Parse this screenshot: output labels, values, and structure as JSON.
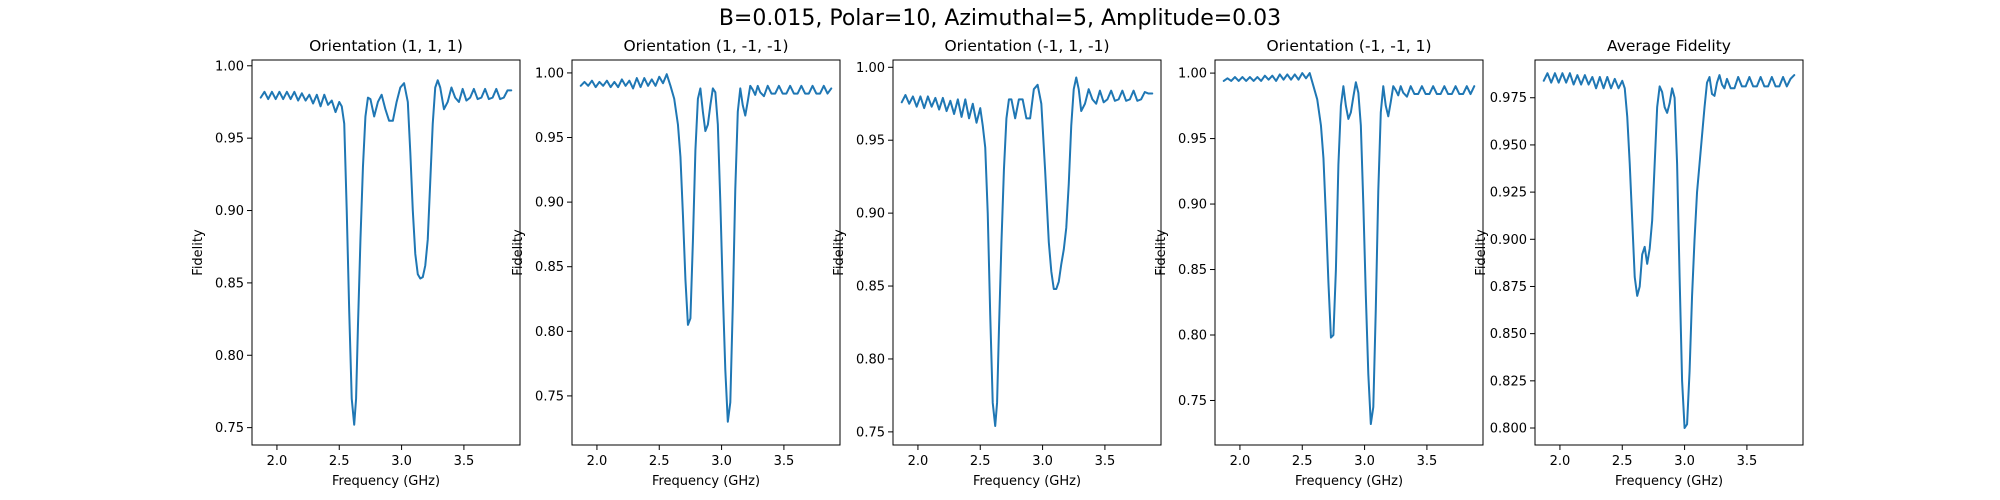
{
  "figure": {
    "suptitle": "B=0.015, Polar=10, Azimuthal=5, Amplitude=0.03"
  },
  "colors": {
    "line": "#1f77b4",
    "axes": "#000000",
    "background": "#ffffff"
  },
  "chart_data": [
    {
      "type": "line",
      "title": "Orientation (1, 1, 1)",
      "xlabel": "Frequency (GHz)",
      "ylabel": "Fidelity",
      "xlim": [
        1.8,
        3.95
      ],
      "ylim": [
        0.738,
        1.004
      ],
      "xticks": [
        2.0,
        2.5,
        3.0,
        3.5
      ],
      "xtick_labels": [
        "2.0",
        "2.5",
        "3.0",
        "3.5"
      ],
      "yticks": [
        0.75,
        0.8,
        0.85,
        0.9,
        0.95,
        1.0
      ],
      "ytick_labels": [
        "0.75",
        "0.80",
        "0.85",
        "0.90",
        "0.95",
        "1.00"
      ],
      "grid": false,
      "series": [
        {
          "x": [
            1.87,
            1.9,
            1.93,
            1.96,
            1.99,
            2.02,
            2.05,
            2.08,
            2.11,
            2.14,
            2.17,
            2.2,
            2.23,
            2.26,
            2.29,
            2.32,
            2.35,
            2.38,
            2.41,
            2.44,
            2.47,
            2.5,
            2.52,
            2.54,
            2.56,
            2.58,
            2.6,
            2.62,
            2.635,
            2.65,
            2.67,
            2.69,
            2.71,
            2.73,
            2.75,
            2.78,
            2.81,
            2.84,
            2.87,
            2.9,
            2.93,
            2.96,
            2.99,
            3.02,
            3.05,
            3.07,
            3.09,
            3.11,
            3.13,
            3.15,
            3.17,
            3.19,
            3.21,
            3.23,
            3.25,
            3.27,
            3.29,
            3.31,
            3.34,
            3.37,
            3.4,
            3.43,
            3.46,
            3.49,
            3.52,
            3.55,
            3.58,
            3.61,
            3.64,
            3.67,
            3.7,
            3.73,
            3.76,
            3.79,
            3.82,
            3.85,
            3.88
          ],
          "y": [
            0.978,
            0.982,
            0.977,
            0.982,
            0.977,
            0.982,
            0.977,
            0.982,
            0.977,
            0.982,
            0.976,
            0.981,
            0.976,
            0.98,
            0.974,
            0.98,
            0.972,
            0.98,
            0.973,
            0.976,
            0.968,
            0.975,
            0.972,
            0.96,
            0.9,
            0.83,
            0.77,
            0.752,
            0.77,
            0.82,
            0.88,
            0.93,
            0.965,
            0.978,
            0.977,
            0.965,
            0.975,
            0.98,
            0.97,
            0.962,
            0.962,
            0.975,
            0.985,
            0.988,
            0.975,
            0.94,
            0.9,
            0.87,
            0.856,
            0.853,
            0.854,
            0.862,
            0.88,
            0.92,
            0.96,
            0.985,
            0.99,
            0.985,
            0.97,
            0.975,
            0.985,
            0.978,
            0.975,
            0.984,
            0.976,
            0.978,
            0.984,
            0.977,
            0.978,
            0.984,
            0.977,
            0.978,
            0.984,
            0.977,
            0.978,
            0.983,
            0.983
          ]
        }
      ]
    },
    {
      "type": "line",
      "title": "Orientation (1, -1, -1)",
      "xlabel": "Frequency (GHz)",
      "ylabel": "Fidelity",
      "xlim": [
        1.8,
        3.95
      ],
      "ylim": [
        0.712,
        1.01
      ],
      "xticks": [
        2.0,
        2.5,
        3.0,
        3.5
      ],
      "xtick_labels": [
        "2.0",
        "2.5",
        "3.0",
        "3.5"
      ],
      "yticks": [
        0.75,
        0.8,
        0.85,
        0.9,
        0.95,
        1.0
      ],
      "ytick_labels": [
        "0.75",
        "0.80",
        "0.85",
        "0.90",
        "0.95",
        "1.00"
      ],
      "grid": false,
      "series": [
        {
          "x": [
            1.87,
            1.9,
            1.93,
            1.96,
            1.99,
            2.02,
            2.05,
            2.08,
            2.11,
            2.14,
            2.17,
            2.2,
            2.23,
            2.26,
            2.29,
            2.32,
            2.35,
            2.38,
            2.41,
            2.44,
            2.47,
            2.5,
            2.53,
            2.56,
            2.59,
            2.62,
            2.65,
            2.67,
            2.69,
            2.71,
            2.73,
            2.75,
            2.77,
            2.79,
            2.81,
            2.83,
            2.85,
            2.87,
            2.89,
            2.91,
            2.93,
            2.95,
            2.97,
            2.99,
            3.01,
            3.03,
            3.05,
            3.07,
            3.09,
            3.11,
            3.13,
            3.15,
            3.17,
            3.19,
            3.21,
            3.23,
            3.25,
            3.27,
            3.29,
            3.31,
            3.34,
            3.37,
            3.4,
            3.43,
            3.46,
            3.49,
            3.52,
            3.55,
            3.58,
            3.61,
            3.64,
            3.67,
            3.7,
            3.73,
            3.76,
            3.79,
            3.82,
            3.85,
            3.88
          ],
          "y": [
            0.99,
            0.993,
            0.99,
            0.994,
            0.989,
            0.993,
            0.99,
            0.994,
            0.989,
            0.993,
            0.989,
            0.995,
            0.99,
            0.994,
            0.988,
            0.996,
            0.989,
            0.996,
            0.99,
            0.995,
            0.99,
            0.997,
            0.992,
            0.999,
            0.99,
            0.98,
            0.96,
            0.935,
            0.89,
            0.84,
            0.805,
            0.81,
            0.87,
            0.94,
            0.98,
            0.988,
            0.97,
            0.955,
            0.96,
            0.975,
            0.988,
            0.985,
            0.96,
            0.9,
            0.83,
            0.77,
            0.73,
            0.745,
            0.82,
            0.91,
            0.97,
            0.988,
            0.975,
            0.967,
            0.978,
            0.99,
            0.987,
            0.983,
            0.99,
            0.985,
            0.982,
            0.99,
            0.984,
            0.984,
            0.99,
            0.984,
            0.984,
            0.99,
            0.984,
            0.984,
            0.99,
            0.984,
            0.984,
            0.99,
            0.984,
            0.984,
            0.99,
            0.984,
            0.988
          ]
        }
      ]
    },
    {
      "type": "line",
      "title": "Orientation (-1, 1, -1)",
      "xlabel": "Frequency (GHz)",
      "ylabel": "Fidelity",
      "xlim": [
        1.8,
        3.95
      ],
      "ylim": [
        0.741,
        1.005
      ],
      "xticks": [
        2.0,
        2.5,
        3.0,
        3.5
      ],
      "xtick_labels": [
        "2.0",
        "2.5",
        "3.0",
        "3.5"
      ],
      "yticks": [
        0.75,
        0.8,
        0.85,
        0.9,
        0.95,
        1.0
      ],
      "ytick_labels": [
        "0.75",
        "0.80",
        "0.85",
        "0.90",
        "0.95",
        "1.00"
      ],
      "grid": false,
      "series": [
        {
          "x": [
            1.87,
            1.9,
            1.93,
            1.96,
            1.99,
            2.02,
            2.05,
            2.08,
            2.11,
            2.14,
            2.17,
            2.2,
            2.23,
            2.26,
            2.29,
            2.32,
            2.35,
            2.38,
            2.41,
            2.44,
            2.47,
            2.5,
            2.52,
            2.54,
            2.56,
            2.58,
            2.6,
            2.62,
            2.635,
            2.65,
            2.67,
            2.69,
            2.71,
            2.73,
            2.75,
            2.78,
            2.81,
            2.84,
            2.87,
            2.9,
            2.93,
            2.96,
            2.99,
            3.02,
            3.05,
            3.07,
            3.09,
            3.11,
            3.13,
            3.15,
            3.17,
            3.19,
            3.21,
            3.23,
            3.25,
            3.27,
            3.29,
            3.31,
            3.34,
            3.37,
            3.4,
            3.43,
            3.46,
            3.49,
            3.52,
            3.55,
            3.58,
            3.61,
            3.64,
            3.67,
            3.7,
            3.73,
            3.76,
            3.79,
            3.82,
            3.85,
            3.88
          ],
          "y": [
            0.976,
            0.981,
            0.975,
            0.98,
            0.973,
            0.98,
            0.972,
            0.98,
            0.973,
            0.979,
            0.971,
            0.979,
            0.97,
            0.977,
            0.968,
            0.978,
            0.966,
            0.978,
            0.965,
            0.975,
            0.962,
            0.972,
            0.96,
            0.945,
            0.9,
            0.83,
            0.77,
            0.754,
            0.77,
            0.82,
            0.88,
            0.93,
            0.965,
            0.978,
            0.978,
            0.965,
            0.978,
            0.978,
            0.965,
            0.965,
            0.985,
            0.988,
            0.975,
            0.93,
            0.88,
            0.86,
            0.848,
            0.848,
            0.853,
            0.865,
            0.875,
            0.89,
            0.92,
            0.96,
            0.985,
            0.993,
            0.985,
            0.97,
            0.975,
            0.985,
            0.978,
            0.975,
            0.984,
            0.976,
            0.978,
            0.984,
            0.977,
            0.978,
            0.984,
            0.977,
            0.978,
            0.984,
            0.977,
            0.978,
            0.983,
            0.982,
            0.982
          ]
        }
      ]
    },
    {
      "type": "line",
      "title": "Orientation (-1, -1, 1)",
      "xlabel": "Frequency (GHz)",
      "ylabel": "Fidelity",
      "xlim": [
        1.8,
        3.95
      ],
      "ylim": [
        0.716,
        1.01
      ],
      "xticks": [
        2.0,
        2.5,
        3.0,
        3.5
      ],
      "xtick_labels": [
        "2.0",
        "2.5",
        "3.0",
        "3.5"
      ],
      "yticks": [
        0.75,
        0.8,
        0.85,
        0.9,
        0.95,
        1.0
      ],
      "ytick_labels": [
        "0.75",
        "0.80",
        "0.85",
        "0.90",
        "0.95",
        "1.00"
      ],
      "grid": false,
      "series": [
        {
          "x": [
            1.87,
            1.9,
            1.93,
            1.96,
            1.99,
            2.02,
            2.05,
            2.08,
            2.11,
            2.14,
            2.17,
            2.2,
            2.23,
            2.26,
            2.29,
            2.32,
            2.35,
            2.38,
            2.41,
            2.44,
            2.47,
            2.5,
            2.53,
            2.56,
            2.59,
            2.62,
            2.65,
            2.67,
            2.69,
            2.71,
            2.73,
            2.75,
            2.77,
            2.79,
            2.81,
            2.83,
            2.85,
            2.87,
            2.89,
            2.91,
            2.93,
            2.95,
            2.97,
            2.99,
            3.01,
            3.03,
            3.05,
            3.07,
            3.09,
            3.11,
            3.13,
            3.15,
            3.17,
            3.19,
            3.21,
            3.23,
            3.25,
            3.27,
            3.29,
            3.31,
            3.34,
            3.37,
            3.4,
            3.43,
            3.46,
            3.49,
            3.52,
            3.55,
            3.58,
            3.61,
            3.64,
            3.67,
            3.7,
            3.73,
            3.76,
            3.79,
            3.82,
            3.85,
            3.88
          ],
          "y": [
            0.994,
            0.996,
            0.994,
            0.997,
            0.994,
            0.997,
            0.994,
            0.997,
            0.994,
            0.997,
            0.994,
            0.998,
            0.995,
            0.998,
            0.994,
            0.999,
            0.995,
            0.999,
            0.995,
            0.999,
            0.995,
            1.0,
            0.996,
            1.0,
            0.99,
            0.98,
            0.96,
            0.935,
            0.89,
            0.84,
            0.798,
            0.8,
            0.85,
            0.93,
            0.975,
            0.99,
            0.975,
            0.965,
            0.97,
            0.982,
            0.993,
            0.985,
            0.96,
            0.9,
            0.83,
            0.77,
            0.732,
            0.745,
            0.82,
            0.91,
            0.97,
            0.99,
            0.975,
            0.967,
            0.978,
            0.99,
            0.987,
            0.983,
            0.99,
            0.985,
            0.982,
            0.99,
            0.984,
            0.984,
            0.99,
            0.984,
            0.984,
            0.99,
            0.984,
            0.984,
            0.99,
            0.984,
            0.984,
            0.99,
            0.984,
            0.984,
            0.99,
            0.984,
            0.99
          ]
        }
      ]
    },
    {
      "type": "line",
      "title": "Average Fidelity",
      "xlabel": "Frequency (GHz)",
      "ylabel": "Fidelity",
      "xlim": [
        1.8,
        3.95
      ],
      "ylim": [
        0.791,
        0.995
      ],
      "xticks": [
        2.0,
        2.5,
        3.0,
        3.5
      ],
      "xtick_labels": [
        "2.0",
        "2.5",
        "3.0",
        "3.5"
      ],
      "yticks": [
        0.8,
        0.825,
        0.85,
        0.875,
        0.9,
        0.925,
        0.95,
        0.975
      ],
      "ytick_labels": [
        "0.800",
        "0.825",
        "0.850",
        "0.875",
        "0.900",
        "0.925",
        "0.950",
        "0.975"
      ],
      "grid": false,
      "series": [
        {
          "x": [
            1.87,
            1.9,
            1.93,
            1.96,
            1.99,
            2.02,
            2.05,
            2.08,
            2.11,
            2.14,
            2.17,
            2.2,
            2.23,
            2.26,
            2.29,
            2.32,
            2.35,
            2.38,
            2.41,
            2.44,
            2.47,
            2.5,
            2.52,
            2.54,
            2.56,
            2.58,
            2.6,
            2.62,
            2.64,
            2.66,
            2.68,
            2.7,
            2.72,
            2.74,
            2.76,
            2.78,
            2.8,
            2.82,
            2.84,
            2.86,
            2.88,
            2.9,
            2.92,
            2.94,
            2.96,
            2.98,
            3.0,
            3.02,
            3.04,
            3.06,
            3.08,
            3.1,
            3.12,
            3.14,
            3.16,
            3.18,
            3.2,
            3.22,
            3.24,
            3.26,
            3.28,
            3.3,
            3.32,
            3.34,
            3.37,
            3.4,
            3.43,
            3.46,
            3.49,
            3.52,
            3.55,
            3.58,
            3.61,
            3.64,
            3.67,
            3.7,
            3.73,
            3.76,
            3.79,
            3.82,
            3.85,
            3.88
          ],
          "y": [
            0.984,
            0.988,
            0.983,
            0.988,
            0.983,
            0.988,
            0.983,
            0.988,
            0.982,
            0.987,
            0.982,
            0.987,
            0.982,
            0.986,
            0.98,
            0.986,
            0.98,
            0.986,
            0.98,
            0.985,
            0.98,
            0.984,
            0.98,
            0.965,
            0.94,
            0.91,
            0.88,
            0.87,
            0.875,
            0.892,
            0.896,
            0.887,
            0.895,
            0.91,
            0.94,
            0.97,
            0.981,
            0.978,
            0.97,
            0.967,
            0.972,
            0.98,
            0.975,
            0.94,
            0.88,
            0.825,
            0.8,
            0.802,
            0.83,
            0.87,
            0.9,
            0.925,
            0.94,
            0.955,
            0.97,
            0.983,
            0.986,
            0.977,
            0.976,
            0.983,
            0.987,
            0.982,
            0.98,
            0.985,
            0.98,
            0.98,
            0.986,
            0.981,
            0.981,
            0.986,
            0.981,
            0.981,
            0.986,
            0.981,
            0.981,
            0.986,
            0.981,
            0.981,
            0.986,
            0.981,
            0.985,
            0.987
          ]
        }
      ]
    }
  ]
}
